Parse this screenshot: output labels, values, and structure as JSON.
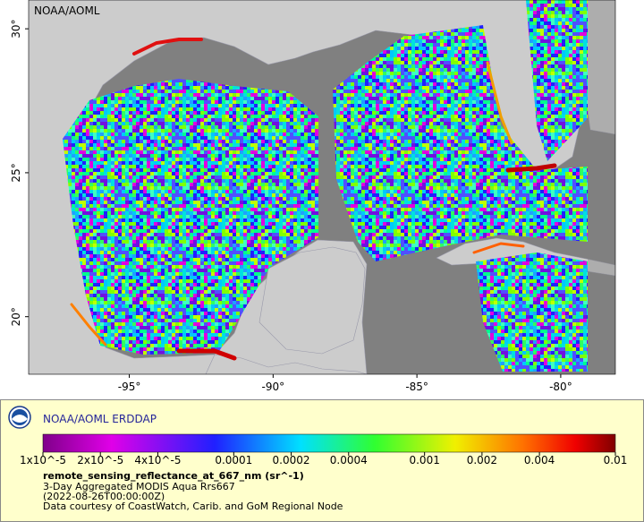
{
  "chart_data": {
    "type": "map",
    "label": "NOAA/AOML",
    "xlim": [
      -98.5,
      -78.1
    ],
    "ylim": [
      18,
      31
    ],
    "xticks": [
      {
        "value": -95,
        "label": "-95°"
      },
      {
        "value": -90,
        "label": "-90°"
      },
      {
        "value": -85,
        "label": "-85°"
      },
      {
        "value": -80,
        "label": "-80°"
      }
    ],
    "yticks": [
      {
        "value": 20,
        "label": "20°"
      },
      {
        "value": 25,
        "label": "25°"
      },
      {
        "value": 30,
        "label": "30°"
      }
    ],
    "colorbar": {
      "range": [
        1e-05,
        0.01
      ],
      "log": true,
      "ticks": [
        {
          "value": 1e-05,
          "label": "1x10^-5"
        },
        {
          "value": 2e-05,
          "label": "2x10^-5"
        },
        {
          "value": 4e-05,
          "label": "4x10^-5"
        },
        0.0001,
        0.0002,
        0.0004,
        0.001,
        0.002,
        0.004,
        0.01
      ]
    }
  },
  "legend_panel": {
    "title": "NOAA/AOML ERDDAP",
    "variable": "remote_sensing_reflectance_at_667_nm (sr^-1)",
    "lines": [
      "3-Day Aggregated MODIS Aqua Rrs667",
      "(2022-08-26T00:00:00Z)",
      "Data courtesy of CoastWatch, Carib. and GoM Regional Node"
    ]
  }
}
